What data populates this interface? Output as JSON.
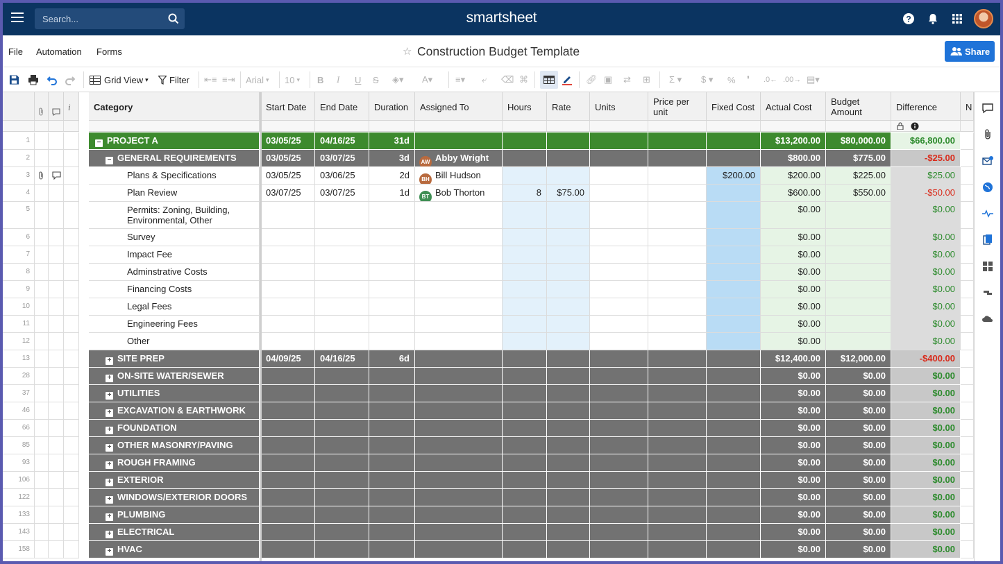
{
  "topbar": {
    "search_placeholder": "Search...",
    "logo": "smartsheet"
  },
  "menu": {
    "file": "File",
    "automation": "Automation",
    "forms": "Forms",
    "title": "Construction Budget Template",
    "share": "Share"
  },
  "toolbar": {
    "grid_view": "Grid View",
    "filter": "Filter",
    "font": "Arial",
    "font_size": "10"
  },
  "columns": {
    "category": "Category",
    "start_date": "Start Date",
    "end_date": "End Date",
    "duration": "Duration",
    "assigned_to": "Assigned To",
    "hours": "Hours",
    "rate": "Rate",
    "units": "Units",
    "price_per_unit": "Price per unit",
    "fixed_cost": "Fixed Cost",
    "actual_cost": "Actual Cost",
    "budget_amount": "Budget Amount",
    "difference": "Difference",
    "next": "N"
  },
  "rows": [
    {
      "n": "1",
      "style": "project",
      "cat": "PROJECT A",
      "toggle": "−",
      "start": "03/05/25",
      "end": "04/16/25",
      "dur": "31d",
      "actual": "$13,200.00",
      "budget": "$80,000.00",
      "diff": "$66,800.00",
      "sign": "pos"
    },
    {
      "n": "2",
      "style": "section",
      "cat": "GENERAL REQUIREMENTS",
      "toggle": "−",
      "start": "03/05/25",
      "end": "03/07/25",
      "dur": "3d",
      "assigned": "Abby Wright",
      "initials": "AW",
      "avcolor": "#b86a3e",
      "actual": "$800.00",
      "budget": "$775.00",
      "diff": "-$25.00",
      "sign": "neg"
    },
    {
      "n": "3",
      "style": "item",
      "cat": "Plans & Specifications",
      "start": "03/05/25",
      "end": "03/06/25",
      "dur": "2d",
      "assigned": "Bill Hudson",
      "initials": "BH",
      "avcolor": "#b86a3e",
      "fixed": "$200.00",
      "actual": "$200.00",
      "budget": "$225.00",
      "diff": "$25.00",
      "sign": "pos",
      "icons": true
    },
    {
      "n": "4",
      "style": "item",
      "cat": "Plan Review",
      "start": "03/07/25",
      "end": "03/07/25",
      "dur": "1d",
      "assigned": "Bob Thorton",
      "initials": "BT",
      "avcolor": "#3f8f54",
      "hours": "8",
      "rate": "$75.00",
      "actual": "$600.00",
      "budget": "$550.00",
      "diff": "-$50.00",
      "sign": "neg"
    },
    {
      "n": "5",
      "style": "item",
      "tall": true,
      "cat": "Permits: Zoning, Building,",
      "cat2": "Environmental, Other",
      "actual": "$0.00",
      "diff": "$0.00",
      "sign": "pos"
    },
    {
      "n": "6",
      "style": "item",
      "cat": "Survey",
      "actual": "$0.00",
      "diff": "$0.00",
      "sign": "pos"
    },
    {
      "n": "7",
      "style": "item",
      "cat": "Impact Fee",
      "actual": "$0.00",
      "diff": "$0.00",
      "sign": "pos"
    },
    {
      "n": "8",
      "style": "item",
      "cat": "Adminstrative Costs",
      "actual": "$0.00",
      "diff": "$0.00",
      "sign": "pos"
    },
    {
      "n": "9",
      "style": "item",
      "cat": "Financing Costs",
      "actual": "$0.00",
      "diff": "$0.00",
      "sign": "pos"
    },
    {
      "n": "10",
      "style": "item",
      "cat": "Legal Fees",
      "actual": "$0.00",
      "diff": "$0.00",
      "sign": "pos"
    },
    {
      "n": "11",
      "style": "item",
      "cat": "Engineering Fees",
      "actual": "$0.00",
      "diff": "$0.00",
      "sign": "pos"
    },
    {
      "n": "12",
      "style": "item",
      "cat": "Other",
      "actual": "$0.00",
      "diff": "$0.00",
      "sign": "pos"
    },
    {
      "n": "13",
      "style": "section",
      "cat": "SITE PREP",
      "toggle": "+",
      "start": "04/09/25",
      "end": "04/16/25",
      "dur": "6d",
      "actual": "$12,400.00",
      "budget": "$12,000.00",
      "diff": "-$400.00",
      "sign": "neg"
    },
    {
      "n": "28",
      "style": "section",
      "cat": "ON-SITE WATER/SEWER",
      "toggle": "+",
      "actual": "$0.00",
      "budget": "$0.00",
      "diff": "$0.00",
      "sign": "pos"
    },
    {
      "n": "37",
      "style": "section",
      "cat": "UTILITIES",
      "toggle": "+",
      "actual": "$0.00",
      "budget": "$0.00",
      "diff": "$0.00",
      "sign": "pos"
    },
    {
      "n": "46",
      "style": "section",
      "cat": "EXCAVATION & EARTHWORK",
      "toggle": "+",
      "actual": "$0.00",
      "budget": "$0.00",
      "diff": "$0.00",
      "sign": "pos"
    },
    {
      "n": "66",
      "style": "section",
      "cat": "FOUNDATION",
      "toggle": "+",
      "actual": "$0.00",
      "budget": "$0.00",
      "diff": "$0.00",
      "sign": "pos"
    },
    {
      "n": "85",
      "style": "section",
      "cat": "OTHER MASONRY/PAVING",
      "toggle": "+",
      "actual": "$0.00",
      "budget": "$0.00",
      "diff": "$0.00",
      "sign": "pos"
    },
    {
      "n": "93",
      "style": "section",
      "cat": "ROUGH FRAMING",
      "toggle": "+",
      "actual": "$0.00",
      "budget": "$0.00",
      "diff": "$0.00",
      "sign": "pos"
    },
    {
      "n": "106",
      "style": "section",
      "cat": "EXTERIOR",
      "toggle": "+",
      "actual": "$0.00",
      "budget": "$0.00",
      "diff": "$0.00",
      "sign": "pos"
    },
    {
      "n": "122",
      "style": "section",
      "cat": "WINDOWS/EXTERIOR DOORS",
      "toggle": "+",
      "actual": "$0.00",
      "budget": "$0.00",
      "diff": "$0.00",
      "sign": "pos"
    },
    {
      "n": "133",
      "style": "section",
      "cat": "PLUMBING",
      "toggle": "+",
      "actual": "$0.00",
      "budget": "$0.00",
      "diff": "$0.00",
      "sign": "pos"
    },
    {
      "n": "143",
      "style": "section",
      "cat": "ELECTRICAL",
      "toggle": "+",
      "actual": "$0.00",
      "budget": "$0.00",
      "diff": "$0.00",
      "sign": "pos"
    },
    {
      "n": "158",
      "style": "section",
      "cat": "HVAC",
      "toggle": "+",
      "actual": "$0.00",
      "budget": "$0.00",
      "diff": "$0.00",
      "sign": "pos"
    }
  ],
  "colors": {
    "topbar": "#0b3461",
    "project_row": "#3d8a2e",
    "section_row": "#727272",
    "share": "#1f73d8",
    "negative": "#d92b1b",
    "positive": "#2d8b2d"
  }
}
